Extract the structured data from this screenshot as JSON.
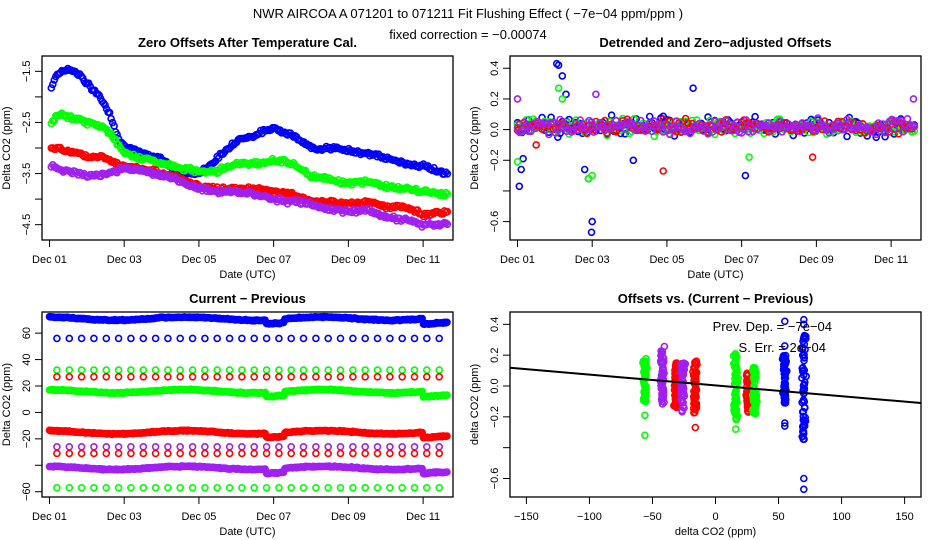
{
  "header": {
    "title": "NWR   AIRCOA A   071201 to 071211   Fit Flushing Effect ( −7e−04 ppm/ppm )",
    "subtitle": "fixed correction = −0.00074"
  },
  "colors": {
    "blue": "#0000ff",
    "green": "#00ff00",
    "red": "#ff0000",
    "purple": "#a020f0",
    "line": "#000000"
  },
  "chart_data": [
    {
      "id": "zero-offsets",
      "type": "scatter",
      "title": "Zero Offsets After Temperature Cal.",
      "xlabel": "Date (UTC)",
      "ylabel": "Delta CO2 (ppm)",
      "xlim": [
        0.8,
        11.8
      ],
      "ylim": [
        -4.8,
        -1.2
      ],
      "x_ticks": [
        {
          "v": 1,
          "label": "Dec 01"
        },
        {
          "v": 3,
          "label": "Dec 03"
        },
        {
          "v": 5,
          "label": "Dec 05"
        },
        {
          "v": 7,
          "label": "Dec 07"
        },
        {
          "v": 9,
          "label": "Dec 09"
        },
        {
          "v": 11,
          "label": "Dec 11"
        }
      ],
      "y_ticks": [
        {
          "v": -1.5,
          "label": "-1.5"
        },
        {
          "v": -2.0,
          "label": ""
        },
        {
          "v": -2.5,
          "label": "-2.5"
        },
        {
          "v": -3.0,
          "label": ""
        },
        {
          "v": -3.5,
          "label": "-3.5"
        },
        {
          "v": -4.0,
          "label": ""
        },
        {
          "v": -4.5,
          "label": "-4.5"
        }
      ],
      "series": [
        {
          "name": "blue",
          "color": "#0000ff",
          "knots": [
            [
              1.0,
              -1.9
            ],
            [
              1.2,
              -1.55
            ],
            [
              1.5,
              -1.45
            ],
            [
              1.8,
              -1.55
            ],
            [
              2.0,
              -1.75
            ],
            [
              2.3,
              -1.95
            ],
            [
              2.6,
              -2.3
            ],
            [
              2.9,
              -2.9
            ],
            [
              3.4,
              -3.1
            ],
            [
              4.0,
              -3.2
            ],
            [
              4.5,
              -3.5
            ],
            [
              5.0,
              -3.5
            ],
            [
              5.5,
              -3.2
            ],
            [
              6.0,
              -2.85
            ],
            [
              6.5,
              -2.75
            ],
            [
              7.0,
              -2.6
            ],
            [
              7.5,
              -2.75
            ],
            [
              8.0,
              -3.0
            ],
            [
              8.5,
              -3.0
            ],
            [
              9.0,
              -3.05
            ],
            [
              9.5,
              -3.1
            ],
            [
              10.0,
              -3.2
            ],
            [
              10.5,
              -3.3
            ],
            [
              11.0,
              -3.35
            ],
            [
              11.6,
              -3.5
            ]
          ]
        },
        {
          "name": "green",
          "color": "#00ff00",
          "knots": [
            [
              1.0,
              -2.6
            ],
            [
              1.2,
              -2.35
            ],
            [
              1.6,
              -2.4
            ],
            [
              2.0,
              -2.5
            ],
            [
              2.5,
              -2.6
            ],
            [
              2.8,
              -2.9
            ],
            [
              3.0,
              -3.1
            ],
            [
              3.5,
              -3.2
            ],
            [
              4.0,
              -3.3
            ],
            [
              4.5,
              -3.4
            ],
            [
              5.0,
              -3.45
            ],
            [
              5.5,
              -3.45
            ],
            [
              6.0,
              -3.3
            ],
            [
              6.5,
              -3.3
            ],
            [
              7.0,
              -3.25
            ],
            [
              7.3,
              -3.25
            ],
            [
              7.6,
              -3.35
            ],
            [
              8.0,
              -3.55
            ],
            [
              8.5,
              -3.6
            ],
            [
              9.0,
              -3.7
            ],
            [
              9.5,
              -3.65
            ],
            [
              10.0,
              -3.75
            ],
            [
              10.5,
              -3.8
            ],
            [
              11.0,
              -3.85
            ],
            [
              11.6,
              -3.9
            ]
          ]
        },
        {
          "name": "red",
          "color": "#ff0000",
          "knots": [
            [
              1.0,
              -3.0
            ],
            [
              1.5,
              -3.05
            ],
            [
              2.0,
              -3.15
            ],
            [
              2.5,
              -3.2
            ],
            [
              3.0,
              -3.35
            ],
            [
              3.5,
              -3.4
            ],
            [
              4.0,
              -3.5
            ],
            [
              4.5,
              -3.6
            ],
            [
              5.0,
              -3.75
            ],
            [
              5.5,
              -3.8
            ],
            [
              6.0,
              -3.8
            ],
            [
              6.5,
              -3.8
            ],
            [
              7.0,
              -3.85
            ],
            [
              7.5,
              -3.9
            ],
            [
              8.0,
              -4.05
            ],
            [
              8.5,
              -4.05
            ],
            [
              9.0,
              -4.1
            ],
            [
              9.5,
              -4.05
            ],
            [
              10.0,
              -4.15
            ],
            [
              10.5,
              -4.15
            ],
            [
              11.0,
              -4.3
            ],
            [
              11.6,
              -4.25
            ]
          ]
        },
        {
          "name": "purple",
          "color": "#a020f0",
          "knots": [
            [
              1.0,
              -3.35
            ],
            [
              1.5,
              -3.45
            ],
            [
              2.0,
              -3.55
            ],
            [
              2.5,
              -3.5
            ],
            [
              3.0,
              -3.4
            ],
            [
              3.5,
              -3.45
            ],
            [
              4.0,
              -3.55
            ],
            [
              4.5,
              -3.65
            ],
            [
              5.0,
              -3.8
            ],
            [
              5.5,
              -3.85
            ],
            [
              6.0,
              -3.85
            ],
            [
              6.5,
              -3.9
            ],
            [
              7.0,
              -4.0
            ],
            [
              7.5,
              -4.05
            ],
            [
              8.0,
              -4.1
            ],
            [
              8.5,
              -4.2
            ],
            [
              9.0,
              -4.25
            ],
            [
              9.5,
              -4.2
            ],
            [
              10.0,
              -4.35
            ],
            [
              10.5,
              -4.4
            ],
            [
              11.0,
              -4.5
            ],
            [
              11.6,
              -4.5
            ]
          ]
        }
      ]
    },
    {
      "id": "detrended",
      "type": "scatter",
      "title": "Detrended and Zero−adjusted Offsets",
      "xlabel": "Date (UTC)",
      "ylabel": "Delta CO2 (ppm)",
      "xlim": [
        0.8,
        11.8
      ],
      "ylim": [
        -0.72,
        0.48
      ],
      "x_ticks": [
        {
          "v": 1,
          "label": "Dec 01"
        },
        {
          "v": 3,
          "label": "Dec 03"
        },
        {
          "v": 5,
          "label": "Dec 05"
        },
        {
          "v": 7,
          "label": "Dec 07"
        },
        {
          "v": 9,
          "label": "Dec 09"
        },
        {
          "v": 11,
          "label": "Dec 11"
        }
      ],
      "y_ticks": [
        {
          "v": 0.4,
          "label": "0.4"
        },
        {
          "v": 0.2,
          "label": "0.2"
        },
        {
          "v": 0.0,
          "label": "0.0"
        },
        {
          "v": -0.2,
          "label": "-0.2"
        },
        {
          "v": -0.4,
          "label": ""
        },
        {
          "v": -0.6,
          "label": "-0.6"
        }
      ],
      "series": [
        {
          "name": "blue",
          "color": "#0000ff",
          "spread": 0.09,
          "outliers": [
            [
              1.05,
              -0.37
            ],
            [
              1.1,
              -0.26
            ],
            [
              1.15,
              -0.19
            ],
            [
              2.05,
              0.43
            ],
            [
              2.1,
              0.42
            ],
            [
              2.2,
              0.35
            ],
            [
              2.3,
              0.23
            ],
            [
              2.8,
              -0.26
            ],
            [
              2.9,
              -0.32
            ],
            [
              3.0,
              -0.6
            ],
            [
              2.98,
              -0.67
            ],
            [
              5.7,
              0.27
            ],
            [
              7.1,
              -0.3
            ],
            [
              4.1,
              -0.2
            ]
          ]
        },
        {
          "name": "green",
          "color": "#00ff00",
          "spread": 0.08,
          "outliers": [
            [
              1.0,
              -0.21
            ],
            [
              2.1,
              0.27
            ],
            [
              2.2,
              0.2
            ],
            [
              2.9,
              -0.32
            ],
            [
              3.0,
              -0.3
            ],
            [
              7.2,
              -0.18
            ]
          ]
        },
        {
          "name": "red",
          "color": "#ff0000",
          "spread": 0.06,
          "outliers": [
            [
              4.9,
              -0.27
            ],
            [
              1.5,
              -0.1
            ],
            [
              8.9,
              -0.18
            ]
          ]
        },
        {
          "name": "purple",
          "color": "#a020f0",
          "spread": 0.07,
          "outliers": [
            [
              3.1,
              0.23
            ],
            [
              1.0,
              0.2
            ],
            [
              11.6,
              0.2
            ]
          ]
        }
      ]
    },
    {
      "id": "current-previous",
      "type": "scatter",
      "title": "Current − Previous",
      "xlabel": "Date (UTC)",
      "ylabel": "Delta CO2 (ppm)",
      "xlim": [
        0.8,
        11.8
      ],
      "ylim": [
        -64,
        76
      ],
      "x_ticks": [
        {
          "v": 1,
          "label": "Dec 01"
        },
        {
          "v": 3,
          "label": "Dec 03"
        },
        {
          "v": 5,
          "label": "Dec 05"
        },
        {
          "v": 7,
          "label": "Dec 07"
        },
        {
          "v": 9,
          "label": "Dec 09"
        },
        {
          "v": 11,
          "label": "Dec 11"
        }
      ],
      "y_ticks": [
        {
          "v": 60,
          "label": "60"
        },
        {
          "v": 40,
          "label": "40"
        },
        {
          "v": 20,
          "label": "20"
        },
        {
          "v": 0,
          "label": "0"
        },
        {
          "v": -20,
          "label": "-20"
        },
        {
          "v": -40,
          "label": ""
        },
        {
          "v": -60,
          "label": "-60"
        }
      ],
      "series": [
        {
          "name": "blue-dense",
          "color": "#0000ff",
          "dense": true,
          "level": 71,
          "wiggle": 1.2
        },
        {
          "name": "blue-sparse",
          "color": "#0000ff",
          "dense": false,
          "level": 56
        },
        {
          "name": "green-sparse-high",
          "color": "#00ff00",
          "dense": false,
          "level": 32
        },
        {
          "name": "red-sparse-high",
          "color": "#ff0000",
          "dense": false,
          "level": 27
        },
        {
          "name": "green-dense",
          "color": "#00ff00",
          "dense": true,
          "level": 16,
          "wiggle": 1.2
        },
        {
          "name": "red-dense",
          "color": "#ff0000",
          "dense": true,
          "level": -15,
          "wiggle": 1.2
        },
        {
          "name": "purple-sparse",
          "color": "#a020f0",
          "dense": false,
          "level": -26
        },
        {
          "name": "red-sparse-low",
          "color": "#ff0000",
          "dense": false,
          "level": -31
        },
        {
          "name": "purple-dense",
          "color": "#a020f0",
          "dense": true,
          "level": -42,
          "wiggle": 1.2
        },
        {
          "name": "green-sparse-low",
          "color": "#00ff00",
          "dense": false,
          "level": -57
        }
      ]
    },
    {
      "id": "offsets-vs-diff",
      "type": "scatter",
      "title": "Offsets vs. (Current − Previous)",
      "xlabel": "delta CO2 (ppm)",
      "ylabel": "delta CO2 (ppm)",
      "xlim": [
        -163,
        163
      ],
      "ylim": [
        -0.72,
        0.48
      ],
      "x_ticks": [
        {
          "v": -150,
          "label": "−150"
        },
        {
          "v": -100,
          "label": "−100"
        },
        {
          "v": -50,
          "label": "−50"
        },
        {
          "v": 0,
          "label": "0"
        },
        {
          "v": 50,
          "label": "50"
        },
        {
          "v": 100,
          "label": "100"
        },
        {
          "v": 150,
          "label": "150"
        }
      ],
      "y_ticks": [
        {
          "v": 0.4,
          "label": "0.4"
        },
        {
          "v": 0.2,
          "label": "0.2"
        },
        {
          "v": 0.0,
          "label": "0.0"
        },
        {
          "v": -0.2,
          "label": "-0.2"
        },
        {
          "v": -0.4,
          "label": ""
        },
        {
          "v": -0.6,
          "label": "-0.6"
        }
      ],
      "fit_line": {
        "slope": -0.0007,
        "intercept": 0.004
      },
      "annotations": [
        "Prev. Dep. =  −7e−04",
        "S. Err. =  2e−04"
      ],
      "columns": [
        {
          "color": "#00ff00",
          "x": -56,
          "ymin": -0.1,
          "ymax": 0.18,
          "extra": [
            -0.19,
            -0.32
          ]
        },
        {
          "color": "#a020f0",
          "x": -42,
          "ymin": -0.12,
          "ymax": 0.26,
          "extra": []
        },
        {
          "color": "#ff0000",
          "x": -31,
          "ymin": -0.14,
          "ymax": 0.15,
          "extra": []
        },
        {
          "color": "#a020f0",
          "x": -26,
          "ymin": -0.17,
          "ymax": 0.16,
          "extra": []
        },
        {
          "color": "#ff0000",
          "x": -16,
          "ymin": -0.18,
          "ymax": 0.18,
          "extra": [
            -0.27
          ]
        },
        {
          "color": "#00ff00",
          "x": 16,
          "ymin": -0.22,
          "ymax": 0.21,
          "extra": [
            -0.28
          ]
        },
        {
          "color": "#ff0000",
          "x": 26,
          "ymin": -0.17,
          "ymax": 0.09,
          "extra": []
        },
        {
          "color": "#00ff00",
          "x": 31,
          "ymin": -0.18,
          "ymax": 0.12,
          "extra": []
        },
        {
          "color": "#0000ff",
          "x": 55,
          "ymin": -0.13,
          "ymax": 0.2,
          "extra": [
            -0.24,
            -0.26,
            0.42,
            0.26
          ]
        },
        {
          "color": "#0000ff",
          "x": 70,
          "ymin": -0.38,
          "ymax": 0.35,
          "extra": [
            -0.6,
            -0.67,
            0.43,
            0.4
          ]
        }
      ]
    }
  ]
}
